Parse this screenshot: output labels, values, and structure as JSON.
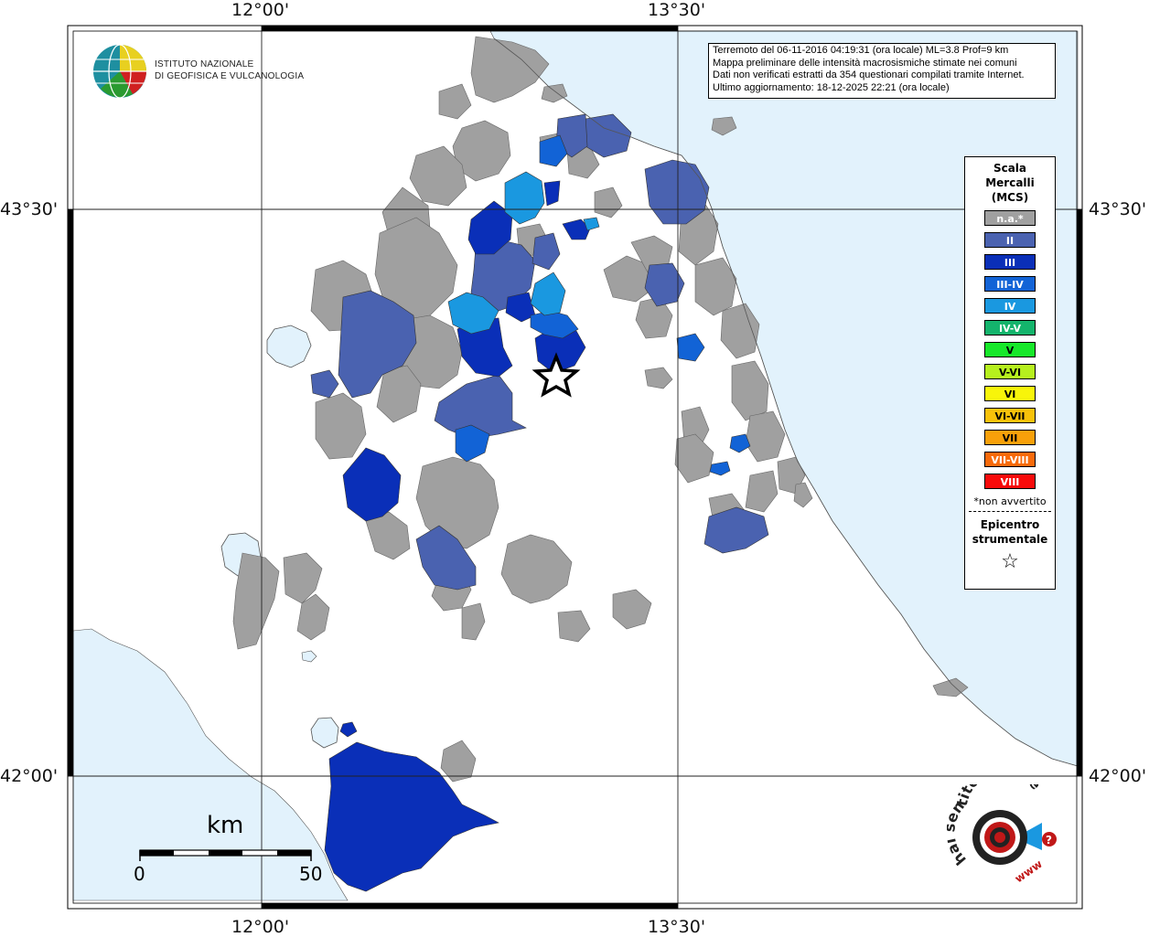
{
  "coords": {
    "top": [
      "12°00'",
      "13°30'"
    ],
    "bottom": [
      "12°00'",
      "13°30'"
    ],
    "left": [
      "43°30'",
      "42°00'"
    ],
    "right": [
      "43°30'",
      "42°00'"
    ]
  },
  "info": {
    "line1": "Terremoto del 06-11-2016 04:19:31 (ora locale) ML=3.8 Prof=9 km",
    "line2": "Mappa preliminare delle intensità macrosismiche stimate nei comuni",
    "line3": "Dati non verificati estratti da 354 questionari compilati tramite Internet.",
    "line4": "Ultimo aggiornamento: 18-12-2025 22:21 (ora locale)"
  },
  "institute": {
    "line1": "ISTITUTO NAZIONALE",
    "line2": "DI GEOFISICA E VULCANOLOGIA"
  },
  "legend": {
    "title1": "Scala",
    "title2": "Mercalli",
    "title3": "(MCS)",
    "items": [
      {
        "label": "n.a.*",
        "color": "#a0a0a0"
      },
      {
        "label": "II",
        "color": "#4a62b0"
      },
      {
        "label": "III",
        "color": "#0a2fb8"
      },
      {
        "label": "III-IV",
        "color": "#1263d6"
      },
      {
        "label": "IV",
        "color": "#1a98e0"
      },
      {
        "label": "IV-V",
        "color": "#14b46c"
      },
      {
        "label": "V",
        "color": "#17e82a"
      },
      {
        "label": "V-VI",
        "color": "#b6f01e"
      },
      {
        "label": "VI",
        "color": "#f8f50a"
      },
      {
        "label": "VI-VII",
        "color": "#f8c20a"
      },
      {
        "label": "VII",
        "color": "#f8a00a"
      },
      {
        "label": "VII-VIII",
        "color": "#f86a0a"
      },
      {
        "label": "VIII",
        "color": "#f80a0a"
      }
    ],
    "note": "*non avvertito",
    "epicenter1": "Epicentro",
    "epicenter2": "strumentale",
    "epicenter_symbol": "☆"
  },
  "scale": {
    "unit": "km",
    "start": "0",
    "end": "50"
  },
  "colors": {
    "sea": "#e2f2fc",
    "land": "#ffffff",
    "na": "#a0a0a0",
    "ii": "#4a62b0",
    "iii": "#0a2fb8",
    "iii_iv": "#1263d6",
    "iv": "#1a98e0"
  },
  "site_logo": {
    "text": "hai sentito il terremoto.it",
    "www": "www"
  }
}
